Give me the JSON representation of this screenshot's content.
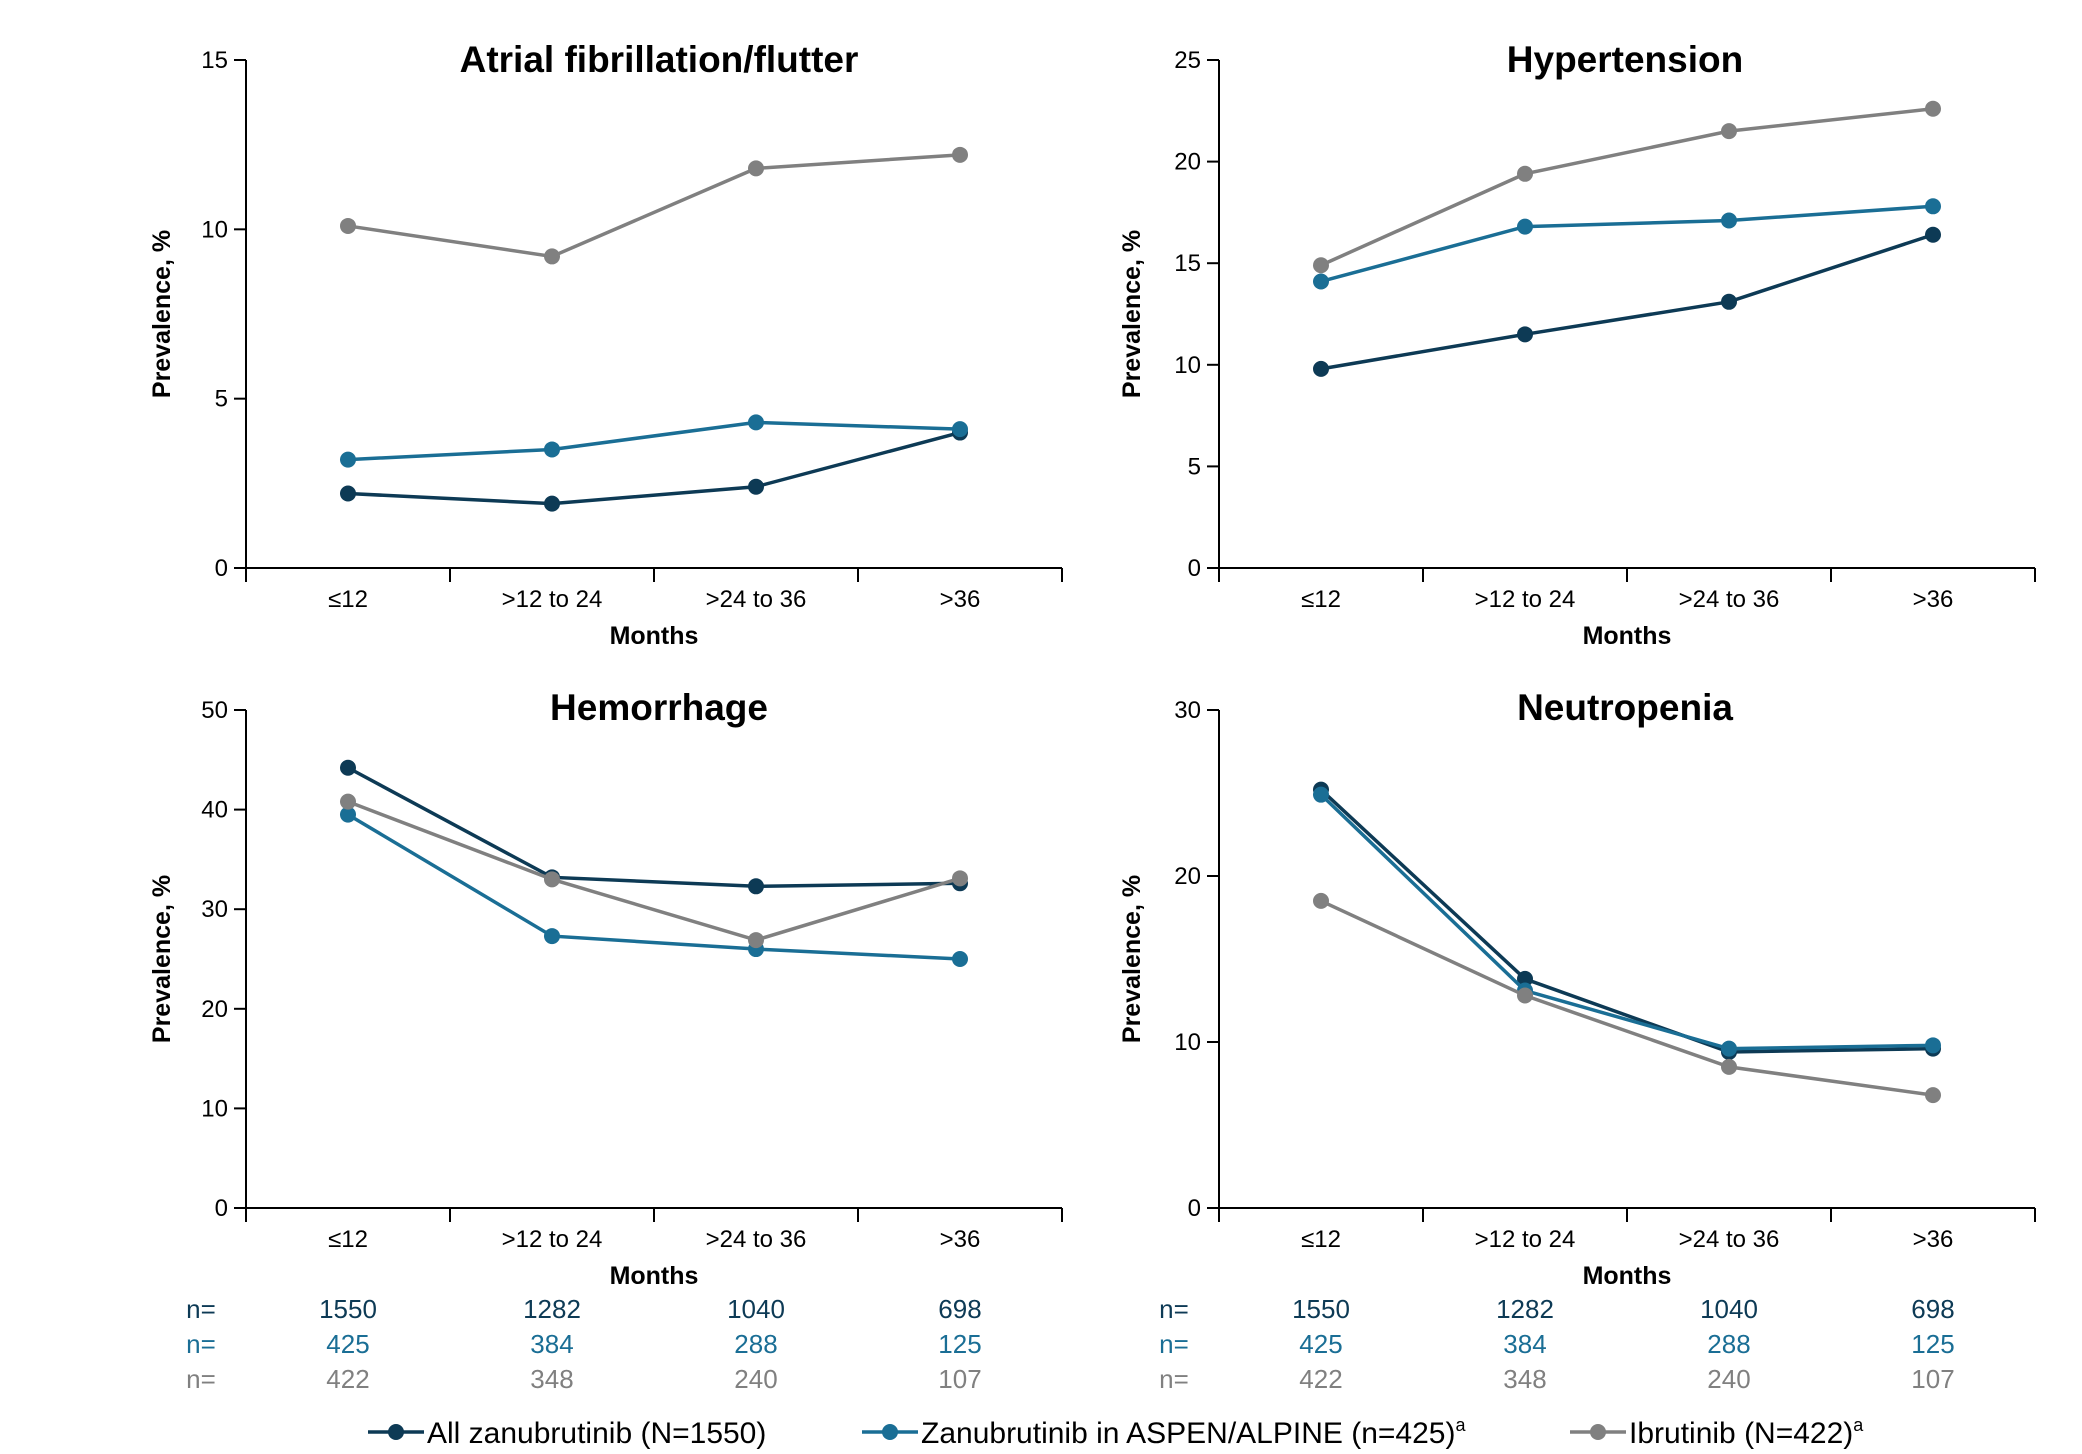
{
  "colors": {
    "all_zanubrutinib": "#0d3a55",
    "zanubrutinib_aspen_alpine": "#1a6e95",
    "ibrutinib": "#808080",
    "axis": "#000000"
  },
  "chart_data": [
    {
      "type": "line",
      "title": "Atrial fibrillation/flutter",
      "xlabel": "Months",
      "ylabel": "Prevalence, %",
      "categories": [
        "≤12",
        ">12 to 24",
        ">24 to 36",
        ">36"
      ],
      "ylim": [
        0,
        15
      ],
      "yticks": [
        0,
        5,
        10,
        15
      ],
      "series": [
        {
          "name": "All zanubrutinib (N=1550)",
          "values": [
            2.2,
            1.9,
            2.4,
            4.0
          ]
        },
        {
          "name": "Zanubrutinib in ASPEN/ALPINE (n=425)",
          "values": [
            3.2,
            3.5,
            4.3,
            4.1
          ]
        },
        {
          "name": "Ibrutinib (N=422)",
          "values": [
            10.1,
            9.2,
            11.8,
            12.2
          ]
        }
      ]
    },
    {
      "type": "line",
      "title": "Hypertension",
      "xlabel": "Months",
      "ylabel": "Prevalence, %",
      "categories": [
        "≤12",
        ">12 to 24",
        ">24 to 36",
        ">36"
      ],
      "ylim": [
        0,
        25
      ],
      "yticks": [
        0,
        5,
        10,
        15,
        20,
        25
      ],
      "series": [
        {
          "name": "All zanubrutinib (N=1550)",
          "values": [
            9.8,
            11.5,
            13.1,
            16.4
          ]
        },
        {
          "name": "Zanubrutinib in ASPEN/ALPINE (n=425)",
          "values": [
            14.1,
            16.8,
            17.1,
            17.8
          ]
        },
        {
          "name": "Ibrutinib (N=422)",
          "values": [
            14.9,
            19.4,
            21.5,
            22.6
          ]
        }
      ]
    },
    {
      "type": "line",
      "title": "Hemorrhage",
      "xlabel": "Months",
      "ylabel": "Prevalence, %",
      "categories": [
        "≤12",
        ">12 to 24",
        ">24 to 36",
        ">36"
      ],
      "ylim": [
        0,
        50
      ],
      "yticks": [
        0,
        10,
        20,
        30,
        40,
        50
      ],
      "series": [
        {
          "name": "All zanubrutinib (N=1550)",
          "values": [
            44.2,
            33.2,
            32.3,
            32.6
          ]
        },
        {
          "name": "Zanubrutinib in ASPEN/ALPINE (n=425)",
          "values": [
            39.5,
            27.3,
            26.0,
            25.0
          ]
        },
        {
          "name": "Ibrutinib (N=422)",
          "values": [
            40.8,
            33.0,
            26.9,
            33.1
          ]
        }
      ]
    },
    {
      "type": "line",
      "title": "Neutropenia",
      "xlabel": "Months",
      "ylabel": "Prevalence, %",
      "categories": [
        "≤12",
        ">12 to 24",
        ">24 to 36",
        ">36"
      ],
      "ylim": [
        0,
        30
      ],
      "yticks": [
        0,
        10,
        20,
        30
      ],
      "series": [
        {
          "name": "All zanubrutinib (N=1550)",
          "values": [
            25.2,
            13.8,
            9.4,
            9.6
          ]
        },
        {
          "name": "Zanubrutinib in ASPEN/ALPINE (n=425)",
          "values": [
            24.9,
            13.1,
            9.6,
            9.8
          ]
        },
        {
          "name": "Ibrutinib (N=422)",
          "values": [
            18.5,
            12.8,
            8.5,
            6.8
          ]
        }
      ]
    }
  ],
  "n_table": {
    "prefix": "n=",
    "rows": [
      {
        "values": [
          "1550",
          "1282",
          "1040",
          "698"
        ]
      },
      {
        "values": [
          "425",
          "384",
          "288",
          "125"
        ]
      },
      {
        "values": [
          "422",
          "348",
          "240",
          "107"
        ]
      }
    ]
  },
  "legend": [
    {
      "label": "All zanubrutinib (N=1550)",
      "sup": ""
    },
    {
      "label": "Zanubrutinib in ASPEN/ALPINE (n=425)",
      "sup": "a"
    },
    {
      "label": "Ibrutinib (N=422)",
      "sup": "a"
    }
  ]
}
